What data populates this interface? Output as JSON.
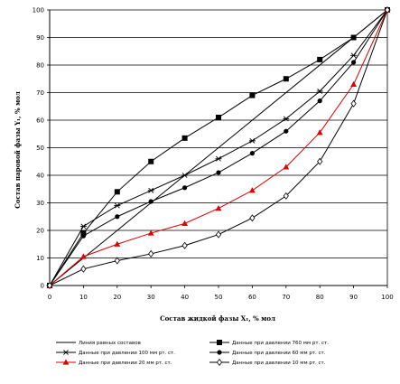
{
  "chart_data": {
    "type": "line",
    "title": "",
    "xlabel": "Состав жидкой фазы X₁, % мол",
    "ylabel": "Состав паровой фазы Y₁, % мол",
    "x_ticks": [
      "0",
      "10",
      "20",
      "30",
      "40",
      "50",
      "60",
      "70",
      "80",
      "90",
      "100"
    ],
    "y_ticks": [
      "0",
      "10",
      "20",
      "30",
      "40",
      "50",
      "60",
      "70",
      "80",
      "90",
      "100"
    ],
    "xlim": [
      0,
      100
    ],
    "ylim": [
      0,
      100
    ],
    "grid": "horizontal",
    "legend_position": "bottom",
    "series": [
      {
        "name": "Линия равных составов",
        "color": "#000000",
        "marker": "none",
        "x": [
          0,
          100
        ],
        "y": [
          0,
          100
        ]
      },
      {
        "name": "Данные при давлении 760 мм рт. ст.",
        "color": "#000000",
        "marker": "square",
        "x": [
          0,
          10,
          20,
          30,
          40,
          50,
          60,
          70,
          80,
          90,
          100
        ],
        "y": [
          0,
          19,
          34,
          45,
          53.5,
          61,
          69,
          75,
          82,
          90,
          100
        ]
      },
      {
        "name": "Данные при давлении 100 мм рт. ст.",
        "color": "#000000",
        "marker": "star",
        "x": [
          0,
          10,
          20,
          30,
          40,
          50,
          60,
          70,
          80,
          90,
          100
        ],
        "y": [
          0,
          21.5,
          29,
          34.5,
          40,
          46,
          52.5,
          60.5,
          70.5,
          83.5,
          100
        ]
      },
      {
        "name": "Данные при давлении 60 мм рт. ст.",
        "color": "#000000",
        "marker": "circle",
        "x": [
          0,
          10,
          20,
          30,
          40,
          50,
          60,
          70,
          80,
          90,
          100
        ],
        "y": [
          0,
          18,
          25,
          30.5,
          35.5,
          41,
          48,
          56,
          67,
          81,
          100
        ]
      },
      {
        "name": "Данные при давлении 20 мм рт. ст.",
        "color": "#e00000",
        "marker": "triangle",
        "x": [
          0,
          10,
          20,
          30,
          40,
          50,
          60,
          70,
          80,
          90,
          100
        ],
        "y": [
          0,
          10.5,
          15,
          19,
          22.5,
          28,
          34.5,
          43,
          55.5,
          73,
          100
        ]
      },
      {
        "name": "Данные при давлении 10 мм рт. ст.",
        "color": "#000000",
        "marker": "diamond-open",
        "x": [
          0,
          10,
          20,
          30,
          40,
          50,
          60,
          70,
          80,
          90,
          100
        ],
        "y": [
          0,
          6,
          9,
          11.5,
          14.5,
          18.5,
          24.5,
          32.5,
          45,
          66,
          100
        ]
      }
    ]
  }
}
